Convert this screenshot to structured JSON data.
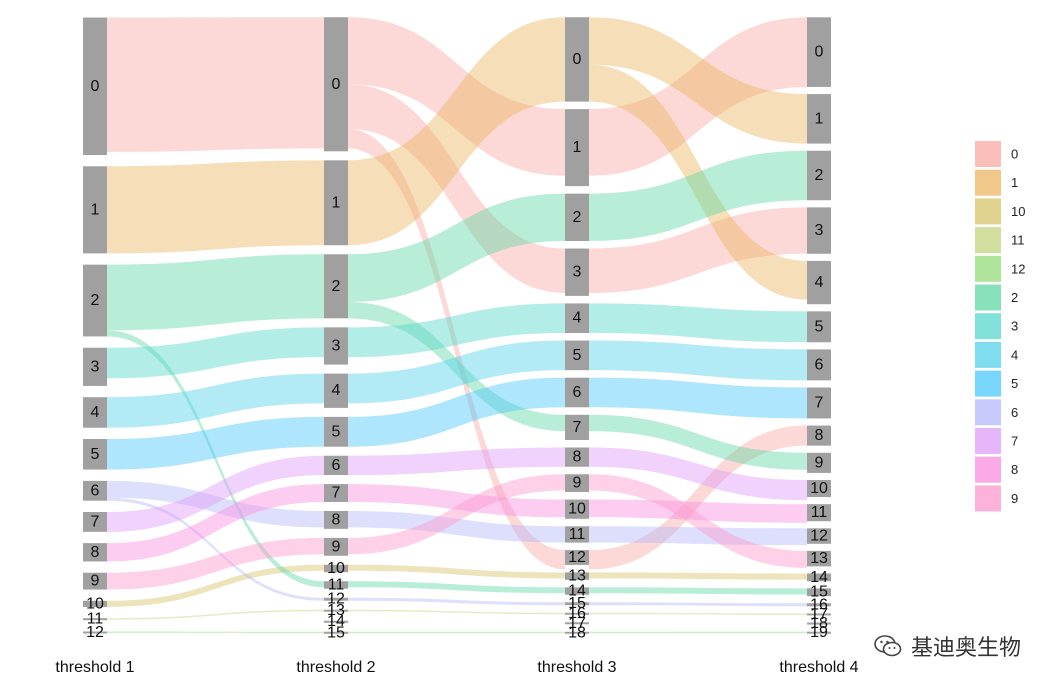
{
  "chart_data": {
    "type": "sankey",
    "axes": [
      "threshold_1",
      "threshold_2",
      "threshold_3",
      "threshold_4"
    ],
    "axis_labels": [
      "threshold  1",
      "threshold  2",
      "threshold  3",
      "threshold  4"
    ],
    "nodes": [
      [
        "0",
        "1",
        "2",
        "3",
        "4",
        "5",
        "6",
        "7",
        "8",
        "9",
        "10",
        "11",
        "12"
      ],
      [
        "0",
        "1",
        "2",
        "3",
        "4",
        "5",
        "6",
        "7",
        "8",
        "9",
        "10",
        "11",
        "12",
        "13",
        "14",
        "15"
      ],
      [
        "0",
        "1",
        "2",
        "3",
        "4",
        "5",
        "6",
        "7",
        "8",
        "9",
        "10",
        "11",
        "12",
        "13",
        "14",
        "15",
        "16",
        "17",
        "18"
      ],
      [
        "0",
        "1",
        "2",
        "3",
        "4",
        "5",
        "6",
        "7",
        "8",
        "9",
        "10",
        "11",
        "12",
        "13",
        "14",
        "15",
        "16",
        "17",
        "18",
        "19"
      ]
    ],
    "node_sizes": [
      [
        90,
        57,
        47,
        25,
        20,
        20,
        13,
        13,
        12,
        11,
        4,
        1,
        1
      ],
      [
        90,
        57,
        43,
        25,
        23,
        20,
        13,
        12,
        12,
        12,
        5,
        5,
        2,
        1,
        1,
        1
      ],
      [
        57,
        52,
        32,
        32,
        20,
        20,
        20,
        17,
        13,
        12,
        13,
        11,
        10,
        5,
        5,
        2,
        1,
        1,
        1
      ],
      [
        45,
        32,
        32,
        30,
        28,
        20,
        20,
        20,
        13,
        13,
        11,
        11,
        10,
        10,
        5,
        5,
        2,
        1,
        1,
        1
      ]
    ],
    "flow_groups": [
      {
        "cluster": "0",
        "color": "#f8a9a4",
        "path": [
          "0",
          "0",
          "1",
          "0"
        ],
        "value": 45
      },
      {
        "cluster": "0",
        "color": "#f8a9a4",
        "path": [
          "0",
          "0",
          "3",
          "3"
        ],
        "value": 30
      },
      {
        "cluster": "0",
        "color": "#f8a9a4",
        "path": [
          "0",
          "0",
          "12",
          "8"
        ],
        "value": 13
      },
      {
        "cluster": "1",
        "color": "#ebb661",
        "path": [
          "1",
          "1",
          "0",
          "1"
        ],
        "value": 32
      },
      {
        "cluster": "1",
        "color": "#ebb661",
        "path": [
          "1",
          "1",
          "0",
          "4"
        ],
        "value": 25
      },
      {
        "cluster": "10",
        "color": "#d8c36b",
        "path": [
          "10",
          "10",
          "13",
          "14"
        ],
        "value": 4
      },
      {
        "cluster": "11",
        "color": "#c4d47e",
        "path": [
          "11",
          "13",
          "16",
          "17"
        ],
        "value": 1
      },
      {
        "cluster": "12",
        "color": "#93dc7a",
        "path": [
          "12",
          "15",
          "18",
          "19"
        ],
        "value": 1
      },
      {
        "cluster": "2",
        "color": "#62d7a6",
        "path": [
          "2",
          "2",
          "2",
          "2"
        ],
        "value": 32
      },
      {
        "cluster": "2",
        "color": "#62d7a6",
        "path": [
          "2",
          "2",
          "7",
          "9"
        ],
        "value": 11
      },
      {
        "cluster": "2",
        "color": "#62d7a6",
        "path": [
          "2",
          "11",
          "14",
          "15"
        ],
        "value": 4
      },
      {
        "cluster": "3",
        "color": "#57d6cd",
        "path": [
          "3",
          "3",
          "4",
          "5"
        ],
        "value": 20
      },
      {
        "cluster": "4",
        "color": "#55d2ea",
        "path": [
          "4",
          "4",
          "5",
          "6"
        ],
        "value": 20
      },
      {
        "cluster": "5",
        "color": "#4bc7fb",
        "path": [
          "5",
          "5",
          "6",
          "7"
        ],
        "value": 20
      },
      {
        "cluster": "6",
        "color": "#b6b8fb",
        "path": [
          "6",
          "8",
          "11",
          "12"
        ],
        "value": 11
      },
      {
        "cluster": "6",
        "color": "#b6b8fb",
        "path": [
          "6",
          "12",
          "15",
          "16"
        ],
        "value": 2
      },
      {
        "cluster": "7",
        "color": "#dd9cf8",
        "path": [
          "7",
          "6",
          "8",
          "10"
        ],
        "value": 13
      },
      {
        "cluster": "8",
        "color": "#f98ddf",
        "path": [
          "8",
          "7",
          "10",
          "11"
        ],
        "value": 12
      },
      {
        "cluster": "9",
        "color": "#fc98cf",
        "path": [
          "9",
          "9",
          "9",
          "13"
        ],
        "value": 11
      }
    ],
    "legend": {
      "position": "right",
      "entries": [
        {
          "label": "0",
          "color": "#f8a9a4"
        },
        {
          "label": "1",
          "color": "#ebb661"
        },
        {
          "label": "10",
          "color": "#d8c36b"
        },
        {
          "label": "11",
          "color": "#c4d47e"
        },
        {
          "label": "12",
          "color": "#93dc7a"
        },
        {
          "label": "2",
          "color": "#62d7a6"
        },
        {
          "label": "3",
          "color": "#57d6cd"
        },
        {
          "label": "4",
          "color": "#55d2ea"
        },
        {
          "label": "5",
          "color": "#4bc7fb"
        },
        {
          "label": "6",
          "color": "#b6b8fb"
        },
        {
          "label": "7",
          "color": "#dd9cf8"
        },
        {
          "label": "8",
          "color": "#f98ddf"
        },
        {
          "label": "9",
          "color": "#fc98cf"
        }
      ]
    },
    "node_color": "#a0a0a0"
  },
  "watermark": {
    "text": "基迪奥生物",
    "icon": "wechat-icon"
  }
}
